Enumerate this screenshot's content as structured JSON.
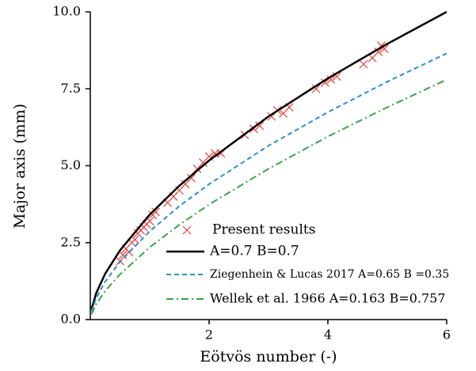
{
  "chart_data": {
    "type": "scatter",
    "xlabel": "Eötvös number (-)",
    "ylabel": "Major axis (mm)",
    "xlim": [
      0,
      6
    ],
    "xticks": [
      2,
      4,
      6
    ],
    "ylim": [
      0,
      10
    ],
    "yticks": [
      {
        "value": 0,
        "label": "0.0"
      },
      {
        "value": 2.5,
        "label": "2.5"
      },
      {
        "value": 5,
        "label": "5.0"
      },
      {
        "value": 7.5,
        "label": "7.5"
      },
      {
        "value": 10,
        "label": "10.0"
      }
    ],
    "legend": "lower right",
    "series": [
      {
        "name": "Present results",
        "type": "scatter",
        "color": "#e8413a",
        "x": [
          0.5,
          0.55,
          0.6,
          0.65,
          0.7,
          0.75,
          0.8,
          0.85,
          0.9,
          0.95,
          1.0,
          1.05,
          1.1,
          1.3,
          1.4,
          1.5,
          1.6,
          1.7,
          1.8,
          1.9,
          2.0,
          2.1,
          2.2,
          2.6,
          2.75,
          2.85,
          3.05,
          3.15,
          3.25,
          3.35,
          3.8,
          3.95,
          4.05,
          4.15,
          4.6,
          4.75,
          4.85,
          4.9,
          4.95
        ],
        "values": [
          1.9,
          2.1,
          2.3,
          2.2,
          2.5,
          2.6,
          2.8,
          2.9,
          3.0,
          3.1,
          3.2,
          3.4,
          3.5,
          3.8,
          4.0,
          4.2,
          4.4,
          4.6,
          4.9,
          5.1,
          5.3,
          5.4,
          5.4,
          6.0,
          6.2,
          6.3,
          6.6,
          6.8,
          6.7,
          6.9,
          7.5,
          7.7,
          7.8,
          7.9,
          8.3,
          8.5,
          8.7,
          8.9,
          8.8
        ]
      },
      {
        "name": "A=0.7 B=0.7",
        "type": "line",
        "dash": "solid",
        "color": "#000000",
        "x": [
          0.02,
          0.1,
          0.25,
          0.5,
          1,
          1.5,
          2,
          3,
          4,
          5,
          6
        ],
        "values": [
          0.33,
          0.86,
          1.49,
          2.25,
          3.41,
          4.35,
          5.17,
          6.6,
          7.84,
          8.96,
          10
        ]
      },
      {
        "name": "Ziegenhein & Lucas 2017 A=0.65 B =0.35",
        "type": "line",
        "dash": "dash",
        "color": "#2e8fc9",
        "x": [
          0.02,
          0.1,
          0.25,
          0.5,
          1,
          1.5,
          2,
          3,
          4,
          5,
          6
        ],
        "values": [
          0.26,
          0.7,
          1.23,
          1.88,
          2.87,
          3.69,
          4.4,
          5.65,
          6.74,
          7.73,
          8.65
        ]
      },
      {
        "name": "Wellek et al. 1966 A=0.163 B=0.757",
        "type": "line",
        "dash": "dashdot",
        "color": "#3aa34a",
        "x": [
          0.02,
          0.1,
          0.25,
          0.5,
          1,
          1.5,
          2,
          3,
          4,
          5,
          6
        ],
        "values": [
          0.17,
          0.5,
          0.93,
          1.47,
          2.35,
          3.08,
          3.74,
          4.9,
          5.95,
          6.9,
          7.8
        ]
      }
    ]
  }
}
